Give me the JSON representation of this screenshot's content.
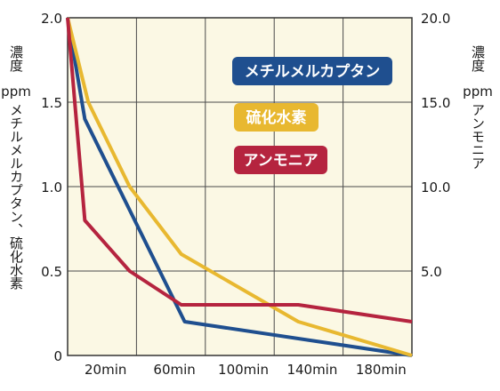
{
  "chart_data": {
    "type": "line",
    "x_tick_labels": [
      "20min",
      "60min",
      "100min",
      "140min",
      "180min"
    ],
    "x_range": [
      0,
      200
    ],
    "left_axis": {
      "label_top": "濃度",
      "label_unit": "ppm",
      "label_rest": "メチルメルカプタン、硫化水素",
      "ticks": [
        "2.0",
        "1.5",
        "1.0",
        "0.5",
        "0"
      ],
      "ylim": [
        0,
        2.0
      ]
    },
    "right_axis": {
      "label_top": "濃度",
      "label_unit": "ppm",
      "label_rest": "アンモニア",
      "ticks": [
        "20.0",
        "15.0",
        "10.0",
        "5.0"
      ],
      "ylim": [
        0,
        20.0
      ]
    },
    "grid": true,
    "plot_background": "#fbf8e4",
    "series": [
      {
        "name": "メチルメルカプタン",
        "color": "#1f4f8f",
        "axis": "left",
        "x": [
          0,
          10,
          68,
          200
        ],
        "y": [
          2.0,
          1.4,
          0.2,
          0
        ]
      },
      {
        "name": "硫化水素",
        "color": "#e8b830",
        "axis": "left",
        "x": [
          0,
          12,
          36,
          66,
          134,
          200
        ],
        "y": [
          2.0,
          1.5,
          1.0,
          0.6,
          0.2,
          0
        ]
      },
      {
        "name": "アンモニア",
        "color": "#b5243f",
        "axis": "right",
        "x": [
          0,
          10,
          36,
          66,
          134,
          200
        ],
        "y": [
          20.0,
          8.0,
          5.0,
          3.0,
          3.0,
          2.0
        ]
      }
    ],
    "legend_placement": "upper-right, inside plot"
  }
}
